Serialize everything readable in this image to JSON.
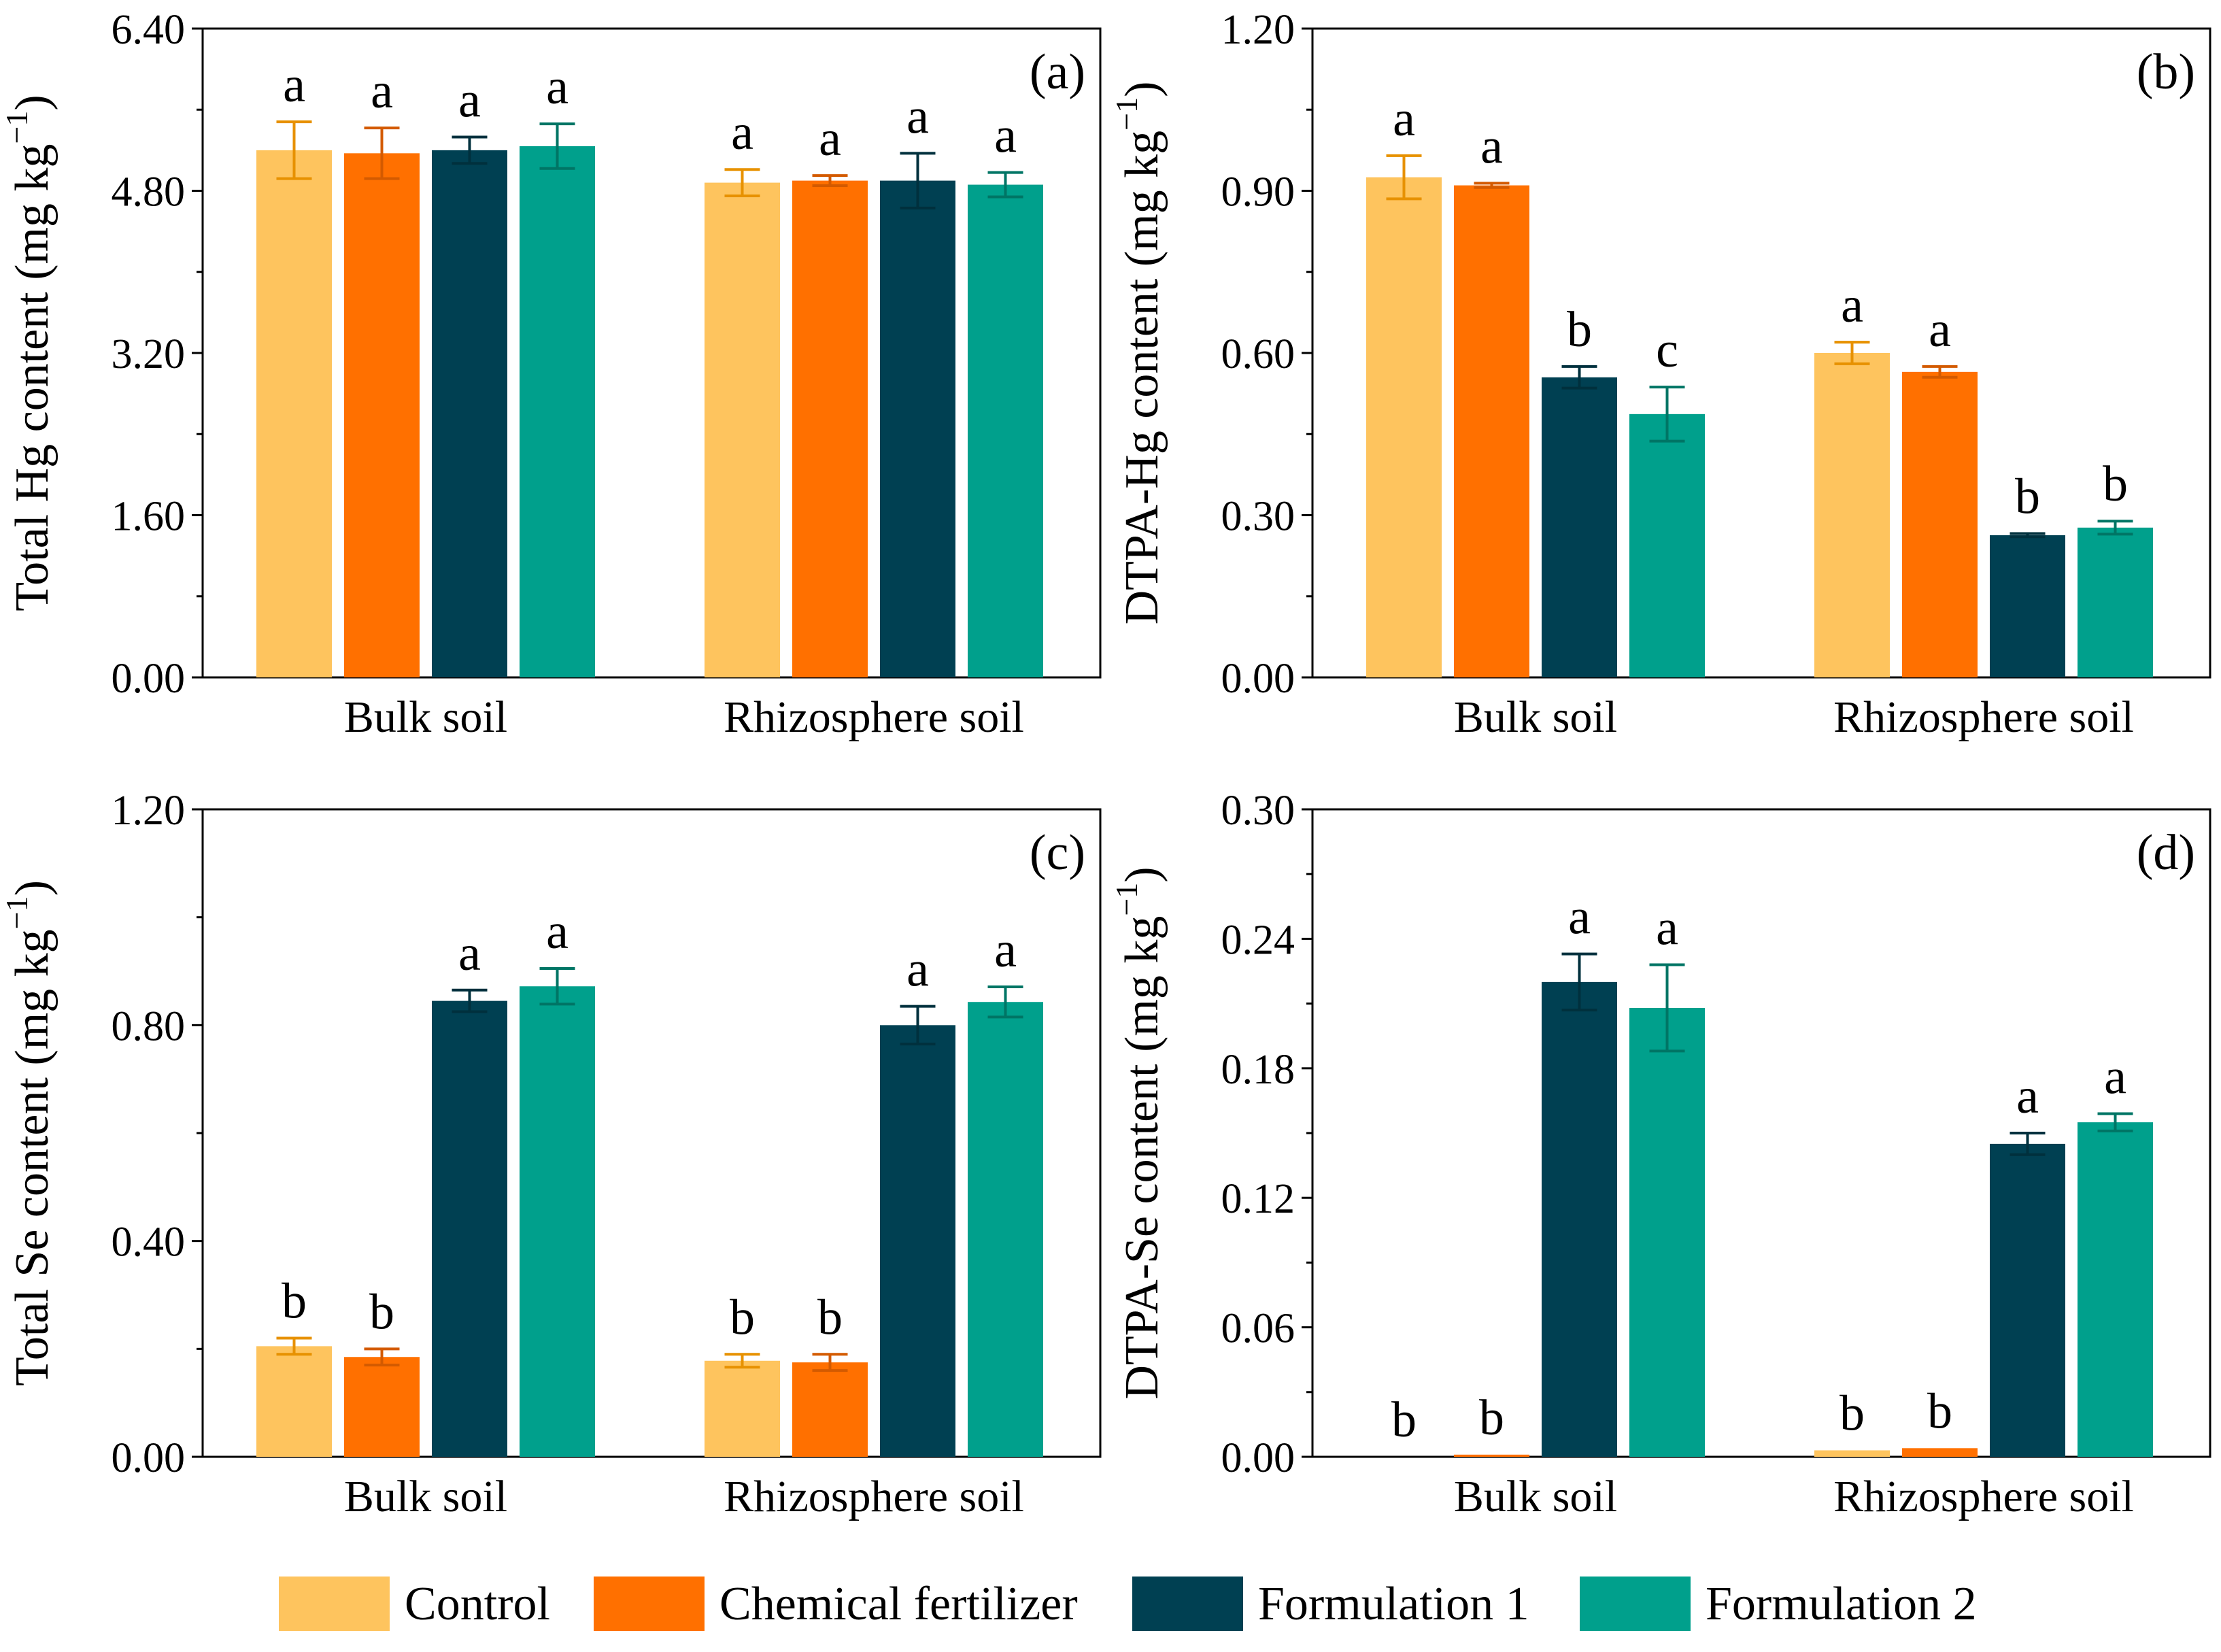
{
  "colors": {
    "Control": "#FEC45E",
    "Chemical fertilizer": "#FF7000",
    "Formulation 1": "#004052",
    "Formulation 2": "#00A08C",
    "err_Control": "#E79100",
    "err_Chemical fertilizer": "#D35A00",
    "err_Formulation 1": "#00303D",
    "err_Formulation 2": "#007565"
  },
  "legend": {
    "items": [
      "Control",
      "Chemical fertilizer",
      "Formulation 1",
      "Formulation 2"
    ]
  },
  "chart_data": [
    {
      "type": "bar",
      "panel": "(a)",
      "ylabel": "Total Hg content (mg kg⁻¹)",
      "ylabel_main": "Total Hg content (mg kg",
      "ylabel_sup": "−1",
      "ylabel_close": ")",
      "ylim": [
        0,
        6.4
      ],
      "yticks": [
        "0.00",
        "1.60",
        "3.20",
        "4.80",
        "6.40"
      ],
      "categories": [
        "Bulk soil",
        "Rhizosphere soil"
      ],
      "series": [
        {
          "name": "Control",
          "values": [
            5.2,
            4.88
          ],
          "errors": [
            0.28,
            0.13
          ],
          "letters": [
            "a",
            "a"
          ]
        },
        {
          "name": "Chemical fertilizer",
          "values": [
            5.17,
            4.9
          ],
          "errors": [
            0.25,
            0.05
          ],
          "letters": [
            "a",
            "a"
          ]
        },
        {
          "name": "Formulation 1",
          "values": [
            5.2,
            4.9
          ],
          "errors": [
            0.13,
            0.27
          ],
          "letters": [
            "a",
            "a"
          ]
        },
        {
          "name": "Formulation 2",
          "values": [
            5.24,
            4.86
          ],
          "errors": [
            0.22,
            0.12
          ],
          "letters": [
            "a",
            "a"
          ]
        }
      ]
    },
    {
      "type": "bar",
      "panel": "(b)",
      "ylabel": "DTPA-Hg content (mg kg⁻¹)",
      "ylabel_main": "DTPA-Hg content (mg kg",
      "ylabel_sup": "−1",
      "ylabel_close": ")",
      "ylim": [
        0,
        1.2
      ],
      "yticks": [
        "0.00",
        "0.30",
        "0.60",
        "0.90",
        "1.20"
      ],
      "categories": [
        "Bulk soil",
        "Rhizosphere soil"
      ],
      "series": [
        {
          "name": "Control",
          "values": [
            0.925,
            0.6
          ],
          "errors": [
            0.04,
            0.02
          ],
          "letters": [
            "a",
            "a"
          ]
        },
        {
          "name": "Chemical fertilizer",
          "values": [
            0.91,
            0.565
          ],
          "errors": [
            0.004,
            0.01
          ],
          "letters": [
            "a",
            "a"
          ]
        },
        {
          "name": "Formulation 1",
          "values": [
            0.555,
            0.263
          ],
          "errors": [
            0.02,
            0.003
          ],
          "letters": [
            "b",
            "b"
          ]
        },
        {
          "name": "Formulation 2",
          "values": [
            0.487,
            0.277
          ],
          "errors": [
            0.05,
            0.012
          ],
          "letters": [
            "c",
            "b"
          ]
        }
      ]
    },
    {
      "type": "bar",
      "panel": "(c)",
      "ylabel": "Total Se content (mg kg⁻¹)",
      "ylabel_main": "Total Se content (mg kg",
      "ylabel_sup": "−1",
      "ylabel_close": ")",
      "ylim": [
        0,
        1.2
      ],
      "yticks": [
        "0.00",
        "0.40",
        "0.80",
        "1.20"
      ],
      "categories": [
        "Bulk soil",
        "Rhizosphere soil"
      ],
      "series": [
        {
          "name": "Control",
          "values": [
            0.205,
            0.178
          ],
          "errors": [
            0.015,
            0.012
          ],
          "letters": [
            "b",
            "b"
          ]
        },
        {
          "name": "Chemical fertilizer",
          "values": [
            0.185,
            0.175
          ],
          "errors": [
            0.015,
            0.015
          ],
          "letters": [
            "b",
            "b"
          ]
        },
        {
          "name": "Formulation 1",
          "values": [
            0.845,
            0.8
          ],
          "errors": [
            0.02,
            0.035
          ],
          "letters": [
            "a",
            "a"
          ]
        },
        {
          "name": "Formulation 2",
          "values": [
            0.872,
            0.843
          ],
          "errors": [
            0.033,
            0.028
          ],
          "letters": [
            "a",
            "a"
          ]
        }
      ]
    },
    {
      "type": "bar",
      "panel": "(d)",
      "ylabel": "DTPA-Se content (mg kg⁻¹)",
      "ylabel_main": "DTPA-Se content (mg kg",
      "ylabel_sup": "−1",
      "ylabel_close": ")",
      "ylim": [
        0,
        0.3
      ],
      "yticks": [
        "0.00",
        "0.06",
        "0.12",
        "0.18",
        "0.24",
        "0.30"
      ],
      "categories": [
        "Bulk soil",
        "Rhizosphere soil"
      ],
      "series": [
        {
          "name": "Control",
          "values": [
            0.0,
            0.003
          ],
          "errors": [
            0,
            0
          ],
          "letters": [
            "b",
            "b"
          ]
        },
        {
          "name": "Chemical fertilizer",
          "values": [
            0.001,
            0.004
          ],
          "errors": [
            0,
            0
          ],
          "letters": [
            "b",
            "b"
          ]
        },
        {
          "name": "Formulation 1",
          "values": [
            0.22,
            0.145
          ],
          "errors": [
            0.013,
            0.005
          ],
          "letters": [
            "a",
            "a"
          ]
        },
        {
          "name": "Formulation 2",
          "values": [
            0.208,
            0.155
          ],
          "errors": [
            0.02,
            0.004
          ],
          "letters": [
            "a",
            "a"
          ]
        }
      ]
    }
  ]
}
